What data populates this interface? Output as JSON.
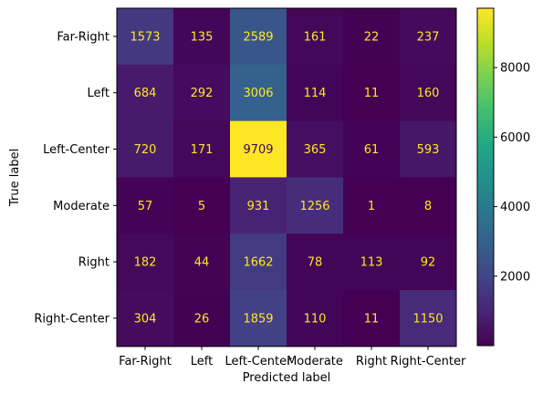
{
  "chart_data": {
    "type": "heatmap",
    "title": "",
    "xlabel": "Predicted label",
    "ylabel": "True label",
    "x_categories": [
      "Far-Right",
      "Left",
      "Left-Center",
      "Moderate",
      "Right",
      "Right-Center"
    ],
    "y_categories": [
      "Far-Right",
      "Left",
      "Left-Center",
      "Moderate",
      "Right",
      "Right-Center"
    ],
    "values": [
      [
        1573,
        135,
        2589,
        161,
        22,
        237
      ],
      [
        684,
        292,
        3006,
        114,
        11,
        160
      ],
      [
        720,
        171,
        9709,
        365,
        61,
        593
      ],
      [
        57,
        5,
        931,
        1256,
        1,
        8
      ],
      [
        182,
        44,
        1662,
        78,
        113,
        92
      ],
      [
        304,
        26,
        1859,
        110,
        11,
        1150
      ]
    ],
    "colormap": "viridis",
    "value_range": [
      1,
      9709
    ],
    "colorbar_ticks": [
      "2000",
      "4000",
      "6000",
      "8000"
    ],
    "colorbar_tick_values": [
      2000,
      4000,
      6000,
      8000
    ],
    "text_color_dark": "#fde725",
    "text_color_light": "#440154",
    "grid": false
  }
}
